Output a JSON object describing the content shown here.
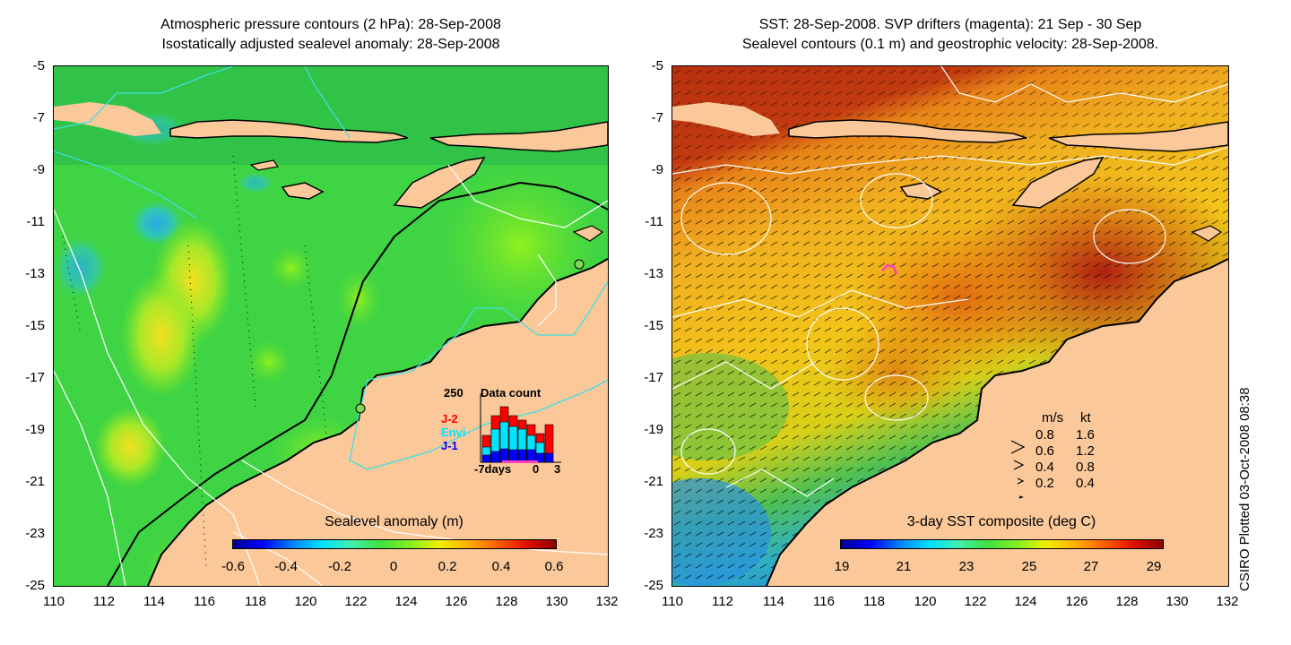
{
  "left_panel": {
    "title_line1": "Atmospheric pressure contours (2 hPa): 28-Sep-2008",
    "title_line2": "Isostatically adjusted sealevel anomaly: 28-Sep-2008",
    "colorbar_title": "Sealevel anomaly (m)",
    "colorbar_ticks": [
      "-0.6",
      "-0.4",
      "-0.2",
      "0",
      "0.2",
      "0.4",
      "0.6"
    ],
    "inset": {
      "max_label": "250",
      "title": "Data count",
      "series_labels": [
        "J-2",
        "Envi",
        "J-1"
      ],
      "series_colors": [
        "#ff0000",
        "#00e5ff",
        "#0000ff"
      ],
      "x_labels": [
        "-7days",
        "0",
        "3"
      ]
    }
  },
  "right_panel": {
    "title_line1": "SST: 28-Sep-2008. SVP drifters (magenta): 21 Sep - 30 Sep",
    "title_line2": "Sealevel contours (0.1 m) and geostrophic velocity: 28-Sep-2008.",
    "colorbar_title": "3-day SST composite (deg C)",
    "colorbar_ticks": [
      "19",
      "21",
      "23",
      "25",
      "27",
      "29"
    ],
    "velocity_legend": {
      "header_ms": "m/s",
      "header_kt": "kt",
      "rows": [
        {
          "ms": "0.8",
          "kt": "1.6"
        },
        {
          "ms": "0.6",
          "kt": "1.2"
        },
        {
          "ms": "0.4",
          "kt": "0.8"
        },
        {
          "ms": "0.2",
          "kt": "0.4"
        }
      ]
    }
  },
  "axes": {
    "lat_ticks": [
      "-5",
      "-7",
      "-9",
      "-11",
      "-13",
      "-15",
      "-17",
      "-19",
      "-21",
      "-23",
      "-25"
    ],
    "lon_ticks": [
      "110",
      "112",
      "114",
      "116",
      "118",
      "120",
      "122",
      "124",
      "126",
      "128",
      "130",
      "132"
    ]
  },
  "footer": {
    "credit": "CSIRO Plotted 03-Oct-2008 08:38"
  },
  "colors": {
    "land": "#fbc89a",
    "sla_green": "#3fdc3a",
    "sst_red": "#b22a10",
    "sst_orange": "#e87a10",
    "sst_yellow": "#f2c418",
    "contour_cyan": "#3fe0e0",
    "drifter_magenta": "#ff40c0"
  }
}
